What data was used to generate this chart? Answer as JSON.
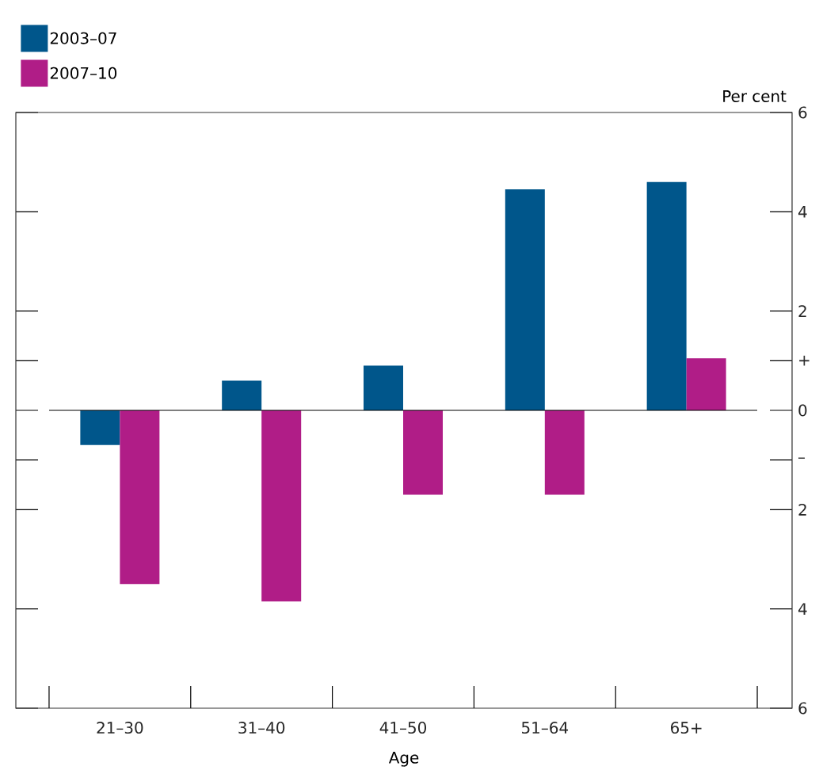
{
  "chart_data": {
    "type": "bar",
    "xlabel": "Age",
    "ylabel": "Per cent",
    "categories": [
      "21–30",
      "31–40",
      "41–50",
      "51–64",
      "65+"
    ],
    "series": [
      {
        "name": "2003–07",
        "color": "#00568b",
        "values": [
          -0.7,
          0.6,
          0.9,
          4.45,
          4.6
        ]
      },
      {
        "name": "2007–10",
        "color": "#b01d87",
        "values": [
          -3.5,
          -3.85,
          -1.7,
          -1.7,
          1.05
        ]
      }
    ],
    "ylim": [
      -6,
      6
    ],
    "yticks": [
      {
        "value": -6,
        "label": "6"
      },
      {
        "value": -4,
        "label": "4"
      },
      {
        "value": -2,
        "label": "2"
      },
      {
        "value": -1,
        "label": "–"
      },
      0,
      {
        "value": 1,
        "label": "+"
      },
      2,
      4,
      6
    ],
    "ref_lines": [
      {
        "axis": "y",
        "value": 0
      }
    ],
    "grid": false,
    "legend": "top left"
  }
}
